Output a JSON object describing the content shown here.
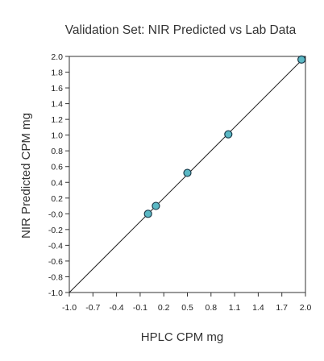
{
  "chart_data": {
    "type": "scatter",
    "title": "Validation Set: NIR Predicted vs Lab Data",
    "xlabel": "HPLC CPM mg",
    "ylabel": "NIR Predicted CPM mg",
    "xlim": [
      -1.0,
      2.0
    ],
    "ylim": [
      -1.0,
      2.0
    ],
    "x_ticks": [
      -1.0,
      -0.7,
      -0.4,
      -0.1,
      0.2,
      0.5,
      0.8,
      1.1,
      1.4,
      1.7,
      2.0
    ],
    "x_tick_labels": [
      "-1.0",
      "-0.7",
      "-0.4",
      "-0.1",
      "0.2",
      "0.5",
      "0.8",
      "1.1",
      "1.4",
      "1.7",
      "2.0"
    ],
    "y_ticks": [
      2.0,
      1.8,
      1.6,
      1.4,
      1.2,
      1.0,
      0.8,
      0.6,
      0.4,
      0.2,
      0.0,
      -0.2,
      -0.4,
      -0.6,
      -0.8,
      -1.0
    ],
    "y_tick_labels": [
      "2.0",
      "1.8",
      "1.6",
      "1.4",
      "1.2",
      "1.0",
      "0.8",
      "0.6",
      "0.4",
      "0.2",
      "-0.0",
      "-0.2",
      "-0.4",
      "-0.6",
      "-0.8",
      "-1.0"
    ],
    "points": [
      {
        "x": 0.0,
        "y": 0.0
      },
      {
        "x": 0.1,
        "y": 0.1
      },
      {
        "x": 0.5,
        "y": 0.52
      },
      {
        "x": 1.02,
        "y": 1.01
      },
      {
        "x": 1.95,
        "y": 1.96
      }
    ],
    "reference_line": {
      "x": [
        -1.0,
        2.0
      ],
      "y": [
        -1.0,
        2.0
      ]
    },
    "grid": false,
    "marker_color": "#5bb8c4",
    "marker_edge_color": "#1a3a4a",
    "line_color": "#222222"
  }
}
